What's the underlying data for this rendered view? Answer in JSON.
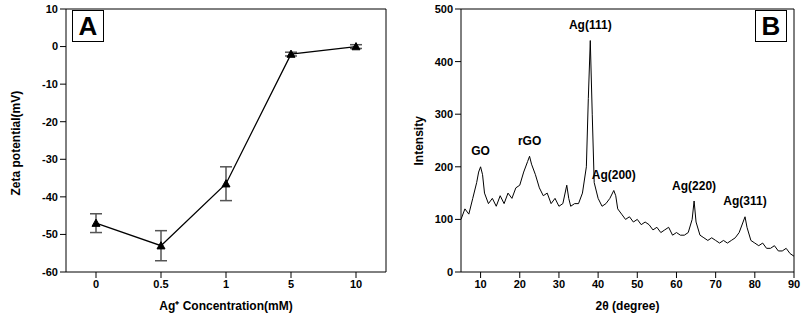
{
  "chart_data": [
    {
      "type": "line",
      "title": "A",
      "x_label": "Ag⁺ Concentration(mM)",
      "y_label": "Zeta potential(mV)",
      "categories": [
        "0",
        "0.5",
        "1",
        "5",
        "10"
      ],
      "values": [
        -47,
        -53,
        -36.5,
        -2,
        0
      ],
      "error": [
        2.5,
        4,
        4.5,
        0.5,
        0.5
      ],
      "color": "#000000",
      "marker": "triangle",
      "line_style": "solid",
      "ylim": [
        -60,
        10
      ],
      "yticks": [
        -60,
        -50,
        -40,
        -30,
        -20,
        -10,
        0,
        10
      ],
      "grid": false
    },
    {
      "type": "line",
      "title": "B",
      "x_label": "2θ (degree)",
      "y_label": "Intensity",
      "x": [
        5,
        6,
        7,
        8,
        9,
        9.5,
        10,
        10.5,
        11,
        12,
        13,
        14,
        15,
        16,
        17,
        18,
        19,
        20,
        21,
        22,
        22.5,
        23,
        24,
        25,
        26,
        27,
        28,
        29,
        30,
        31,
        32,
        32.5,
        33,
        34,
        35,
        36,
        37,
        37.5,
        38,
        38.5,
        39,
        40,
        41,
        42,
        43,
        44,
        44.5,
        45,
        46,
        47,
        48,
        49,
        50,
        51,
        52,
        53,
        54,
        55,
        56,
        57,
        58,
        59,
        60,
        61,
        62,
        63,
        64,
        64.5,
        65,
        66,
        67,
        68,
        69,
        70,
        71,
        72,
        73,
        74,
        75,
        76,
        77,
        77.5,
        78,
        79,
        80,
        81,
        82,
        83,
        84,
        85,
        86,
        87,
        88,
        89,
        90
      ],
      "values": [
        100,
        120,
        110,
        140,
        170,
        190,
        200,
        185,
        150,
        130,
        140,
        125,
        145,
        130,
        150,
        140,
        160,
        165,
        190,
        210,
        220,
        205,
        185,
        160,
        145,
        150,
        130,
        140,
        125,
        130,
        165,
        140,
        125,
        130,
        130,
        150,
        200,
        330,
        440,
        300,
        170,
        140,
        125,
        130,
        140,
        155,
        145,
        120,
        110,
        100,
        105,
        95,
        100,
        90,
        95,
        90,
        80,
        85,
        75,
        80,
        85,
        70,
        75,
        70,
        70,
        75,
        100,
        135,
        95,
        70,
        65,
        60,
        65,
        60,
        55,
        60,
        55,
        60,
        65,
        75,
        95,
        105,
        85,
        60,
        55,
        50,
        55,
        45,
        45,
        50,
        40,
        40,
        45,
        35,
        30
      ],
      "color": "#000000",
      "line_style": "solid",
      "xlim": [
        5,
        90
      ],
      "xticks": [
        10,
        20,
        30,
        40,
        50,
        60,
        70,
        80,
        90
      ],
      "ylim": [
        0,
        500
      ],
      "yticks": [
        0,
        100,
        200,
        300,
        400,
        500
      ],
      "grid": false,
      "annotations": [
        {
          "text": "GO",
          "x": 10,
          "y": 212
        },
        {
          "text": "rGO",
          "x": 22.5,
          "y": 232
        },
        {
          "text": "Ag(111)",
          "x": 38,
          "y": 452
        },
        {
          "text": "Ag(200)",
          "x": 44,
          "y": 167
        },
        {
          "text": "Ag(220)",
          "x": 64.5,
          "y": 147
        },
        {
          "text": "Ag(311)",
          "x": 77.5,
          "y": 117
        }
      ]
    }
  ]
}
